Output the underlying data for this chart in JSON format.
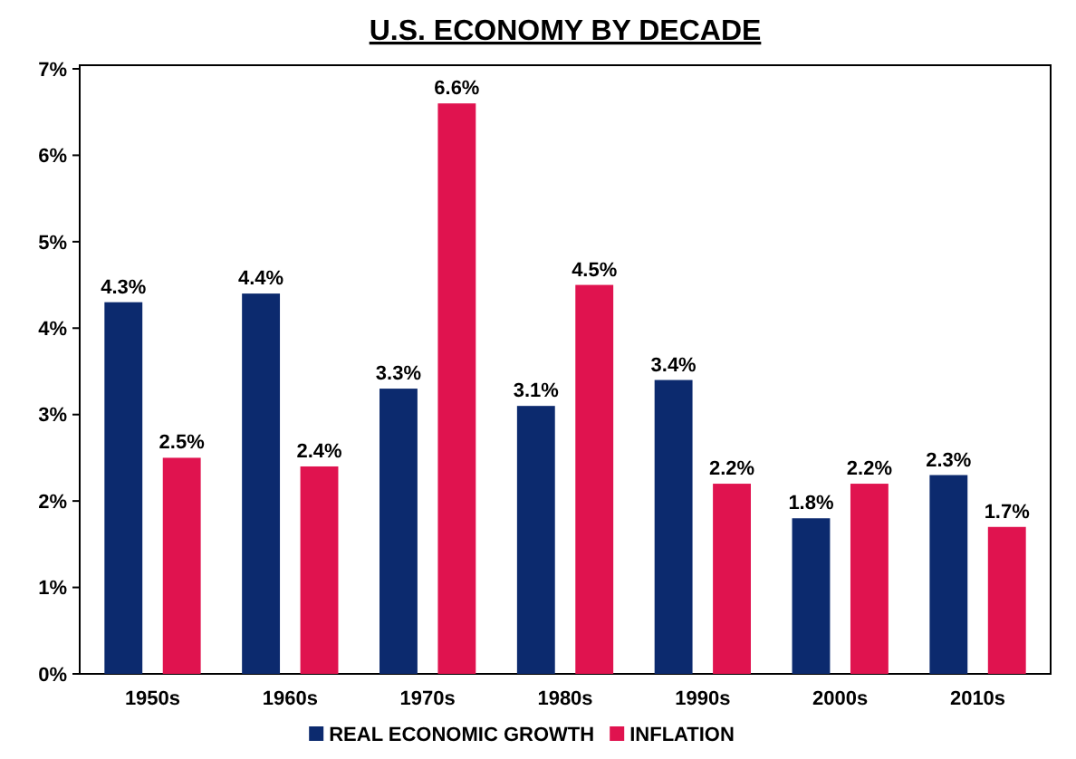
{
  "chart_data": {
    "type": "bar",
    "title": "U.S. ECONOMY BY DECADE",
    "categories": [
      "1950s",
      "1960s",
      "1970s",
      "1980s",
      "1990s",
      "2000s",
      "2010s"
    ],
    "series": [
      {
        "name": "REAL ECONOMIC GROWTH",
        "color": "#0c2a6e",
        "values": [
          4.3,
          4.4,
          3.3,
          3.1,
          3.4,
          1.8,
          2.3
        ],
        "value_labels": [
          "4.3%",
          "4.4%",
          "3.3%",
          "3.1%",
          "3.4%",
          "1.8%",
          "2.3%"
        ]
      },
      {
        "name": "INFLATION",
        "color": "#e0134f",
        "values": [
          2.5,
          2.4,
          6.6,
          4.5,
          2.2,
          2.2,
          1.7
        ],
        "value_labels": [
          "2.5%",
          "2.4%",
          "6.6%",
          "4.5%",
          "2.2%",
          "2.2%",
          "1.7%"
        ]
      }
    ],
    "ylim": [
      0,
      7
    ],
    "yticks": [
      {
        "value": 0,
        "label": "0%"
      },
      {
        "value": 1,
        "label": "1%"
      },
      {
        "value": 2,
        "label": "2%"
      },
      {
        "value": 3,
        "label": "3%"
      },
      {
        "value": 4,
        "label": "4%"
      },
      {
        "value": 5,
        "label": "5%"
      },
      {
        "value": 6,
        "label": "6%"
      },
      {
        "value": 7,
        "label": "7%"
      }
    ],
    "legend": "bottom"
  }
}
